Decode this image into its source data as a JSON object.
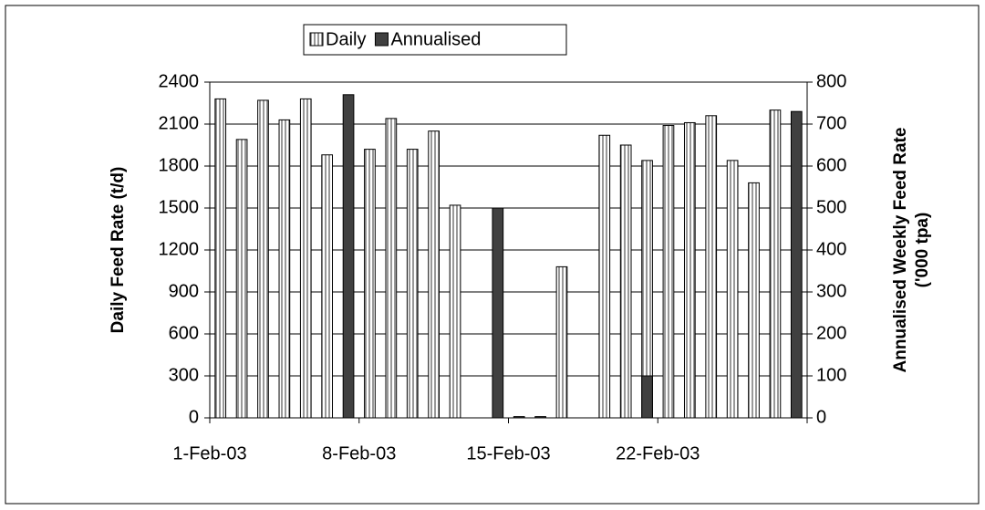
{
  "chart_data": {
    "type": "bar",
    "ylabel": "Daily Feed Rate (t/d)",
    "y2label": [
      "Annualised Weekly Feed Rate",
      "('000 tpa)"
    ],
    "categories": [
      "1-Feb-03",
      null,
      null,
      null,
      null,
      null,
      null,
      "8-Feb-03",
      null,
      null,
      null,
      null,
      null,
      null,
      "15-Feb-03",
      null,
      null,
      null,
      null,
      null,
      null,
      "22-Feb-03",
      null,
      null,
      null,
      null,
      null,
      null
    ],
    "series": [
      {
        "name": "Daily",
        "color": "#d9d9d9",
        "values": [
          2280,
          1990,
          2270,
          2130,
          2280,
          1880,
          null,
          1920,
          2140,
          1920,
          2050,
          1520,
          null,
          null,
          null,
          null,
          1080,
          null,
          2020,
          1950,
          1840,
          2090,
          2110,
          2160,
          1840,
          1680,
          2200,
          null
        ]
      },
      {
        "name": "Annualised",
        "color": "#404040",
        "axis": "y2",
        "values": [
          null,
          null,
          null,
          null,
          null,
          null,
          770,
          null,
          null,
          null,
          null,
          null,
          null,
          500,
          3,
          3,
          null,
          null,
          null,
          null,
          100,
          null,
          null,
          null,
          null,
          null,
          null,
          730
        ]
      }
    ],
    "ylim": [
      0,
      2400
    ],
    "yticks": [
      0,
      300,
      600,
      900,
      1200,
      1500,
      1800,
      2100,
      2400
    ],
    "y2lim": [
      0,
      800
    ],
    "y2ticks": [
      0,
      100,
      200,
      300,
      400,
      500,
      600,
      700,
      800
    ],
    "grid": true,
    "legend": "top"
  }
}
